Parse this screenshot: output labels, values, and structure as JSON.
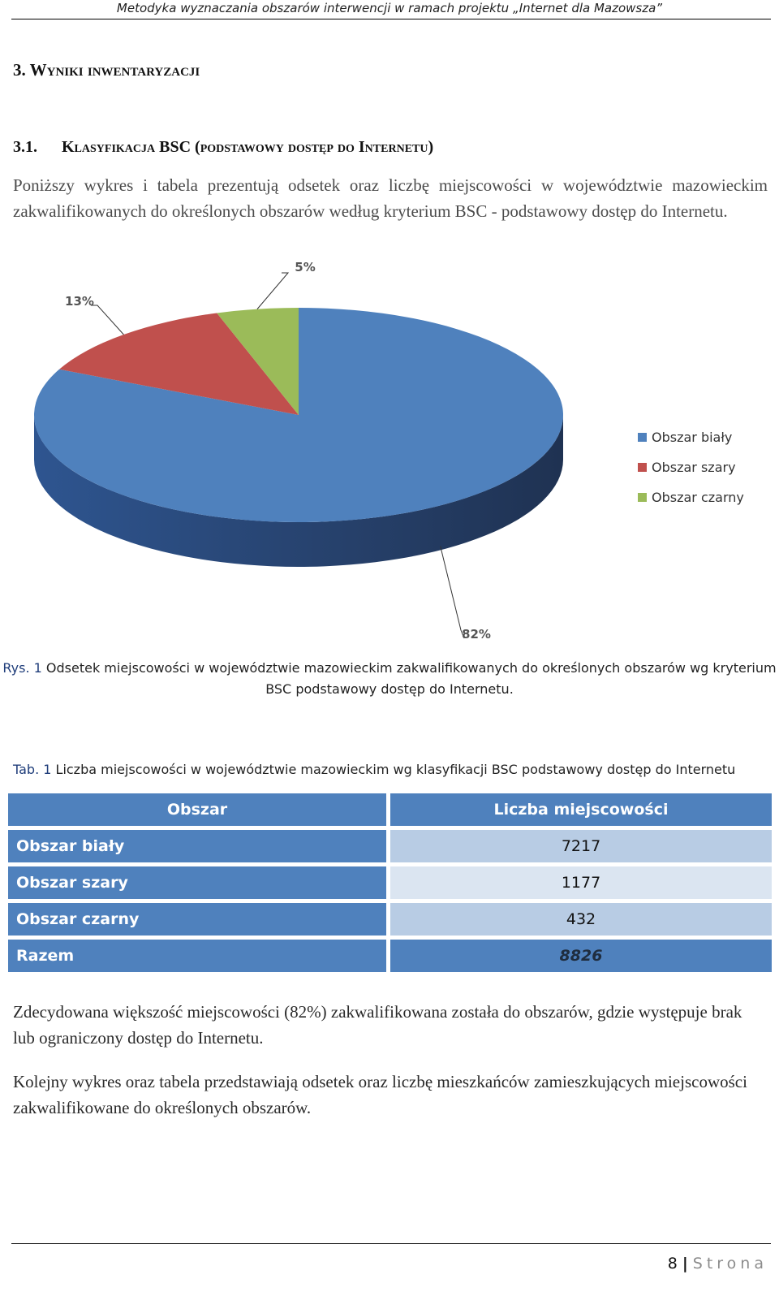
{
  "header": {
    "title": "Metodyka wyznaczania obszarów interwencji w ramach projektu „Internet dla Mazowsza”"
  },
  "section": {
    "title": "3.   Wyniki inwentaryzacji"
  },
  "subsection": {
    "number": "3.1.",
    "title": "Klasyfikacja BSC (podstawowy dostęp do Internetu)"
  },
  "intro": "Poniższy wykres i tabela prezentują odsetek oraz liczbę miejscowości w województwie mazowieckim zakwalifikowanych do określonych obszarów według kryterium BSC - podstawowy dostęp do Internetu.",
  "chart_data": {
    "type": "pie",
    "categories": [
      "Obszar biały",
      "Obszar szary",
      "Obszar czarny"
    ],
    "values": [
      82,
      13,
      5
    ],
    "data_labels": [
      "82%",
      "13%",
      "5%"
    ],
    "colors": [
      "#4f81bd",
      "#c0504d",
      "#9bbb59"
    ],
    "legend_position": "right"
  },
  "figure_caption": {
    "lead": "Rys. 1",
    "text": " Odsetek miejscowości w województwie mazowieckim zakwalifikowanych do określonych obszarów wg kryterium BSC podstawowy dostęp do Internetu."
  },
  "table_caption": {
    "lead": "Tab. 1",
    "text": " Liczba miejscowości w województwie mazowieckim wg klasyfikacji BSC podstawowy dostęp do Internetu"
  },
  "table": {
    "headers": [
      "Obszar",
      "Liczba miejscowości"
    ],
    "rows": [
      {
        "label": "Obszar biały",
        "value": "7217"
      },
      {
        "label": "Obszar szary",
        "value": "1177"
      },
      {
        "label": "Obszar czarny",
        "value": "432"
      }
    ],
    "total": {
      "label": "Razem",
      "value": "8826"
    }
  },
  "paragraphs": [
    "Zdecydowana większość miejscowości (82%) zakwalifikowana została do obszarów, gdzie występuje brak lub ograniczony dostęp do Internetu.",
    "Kolejny wykres oraz tabela przedstawiają odsetek oraz liczbę mieszkańców zamieszkujących miejscowości zakwalifikowane do określonych obszarów."
  ],
  "footer": {
    "page": "8",
    "separator": "|",
    "word": "Strona"
  }
}
